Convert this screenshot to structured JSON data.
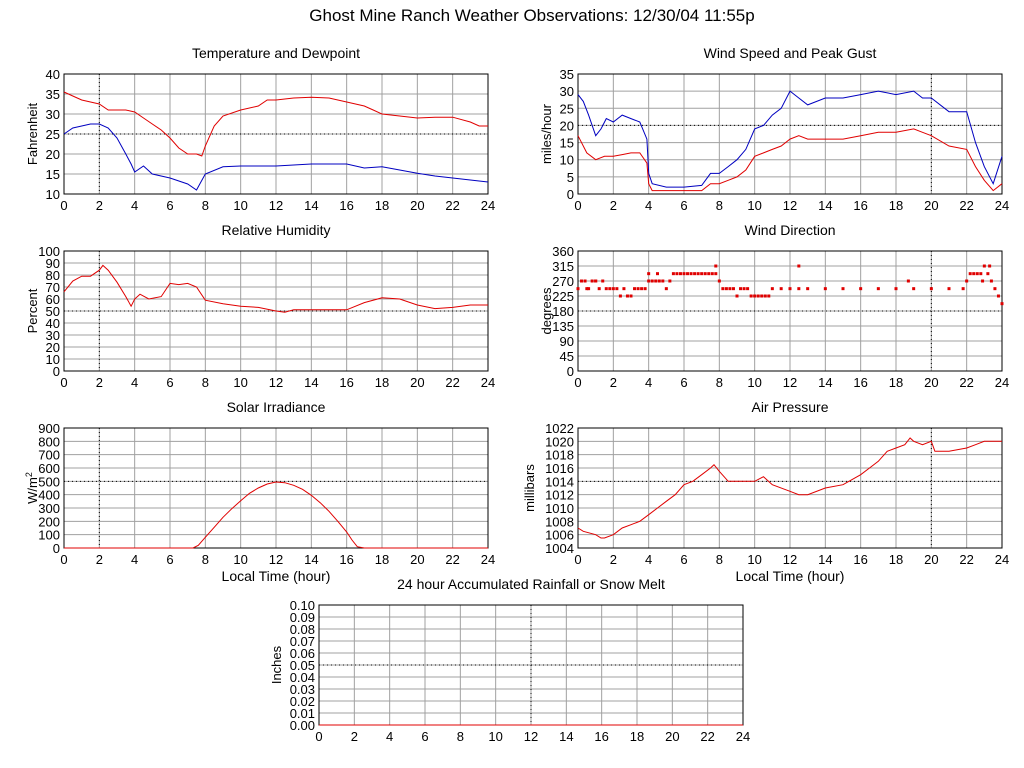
{
  "page": {
    "title": "Ghost Mine Ranch Weather Observations: 12/30/04 11:55p"
  },
  "colors": {
    "grid": "#a0a0a0",
    "dotted": "#000000",
    "red": "#e00000",
    "blue": "#0000c0"
  },
  "chart_data": [
    {
      "id": "temp",
      "type": "line",
      "title": "Temperature and Dewpoint",
      "ylabel": "Fahrenheit",
      "xlabel": "",
      "xlim": [
        0,
        24
      ],
      "ylim": [
        10,
        40
      ],
      "yticks": [
        10,
        15,
        20,
        25,
        30,
        35,
        40
      ],
      "xticks": [
        0,
        2,
        4,
        6,
        8,
        10,
        12,
        14,
        16,
        18,
        20,
        22,
        24
      ],
      "grid": true,
      "series": [
        {
          "color": "red",
          "x": [
            0,
            0.5,
            1,
            1.5,
            2,
            2.5,
            3,
            3.5,
            4,
            4.5,
            5,
            5.5,
            6,
            6.5,
            7,
            7.5,
            7.8,
            8,
            8.5,
            9,
            10,
            11,
            11.5,
            12,
            13,
            14,
            15,
            16,
            17,
            17.5,
            18,
            19,
            20,
            21,
            22,
            23,
            23.5,
            24
          ],
          "y": [
            35.5,
            34.5,
            33.5,
            33,
            32.5,
            31,
            31,
            31,
            30.5,
            29,
            27.5,
            26,
            24,
            21.5,
            20,
            20,
            19.5,
            22,
            27,
            29.5,
            31,
            32,
            33.5,
            33.5,
            34,
            34.2,
            34,
            33,
            32,
            31,
            30,
            29.5,
            29,
            29.2,
            29.2,
            28,
            27,
            27
          ]
        },
        {
          "color": "blue",
          "x": [
            0,
            0.5,
            1,
            1.5,
            2,
            2.5,
            3,
            3.5,
            3.8,
            4,
            4.5,
            5,
            6,
            7,
            7.5,
            8,
            9,
            10,
            12,
            14,
            16,
            17,
            18,
            19,
            20,
            21,
            22,
            23,
            24
          ],
          "y": [
            25,
            26.5,
            27,
            27.5,
            27.5,
            26.5,
            24,
            20,
            17.5,
            15.5,
            17,
            15,
            14,
            12.5,
            11,
            15,
            16.8,
            17,
            17,
            17.5,
            17.5,
            16.5,
            16.8,
            16,
            15.2,
            14.5,
            14,
            13.5,
            13
          ]
        }
      ]
    },
    {
      "id": "wind",
      "type": "line",
      "title": "Wind Speed and Peak Gust",
      "ylabel": "miles/hour",
      "xlabel": "",
      "xlim": [
        0,
        24
      ],
      "ylim": [
        0,
        35
      ],
      "yticks": [
        0,
        5,
        10,
        15,
        20,
        25,
        30,
        35
      ],
      "xticks": [
        0,
        2,
        4,
        6,
        8,
        10,
        12,
        14,
        16,
        18,
        20,
        22,
        24
      ],
      "grid": true,
      "series": [
        {
          "color": "blue",
          "x": [
            0,
            0.3,
            0.6,
            1,
            1.3,
            1.6,
            2,
            2.5,
            3,
            3.5,
            3.9,
            4,
            4.2,
            5,
            6,
            7,
            7.5,
            8,
            8.5,
            9,
            9.5,
            10,
            10.5,
            11,
            11.5,
            12,
            12.5,
            13,
            14,
            15,
            16,
            17,
            18,
            19,
            19.5,
            20,
            21,
            22,
            22.5,
            23,
            23.5,
            24
          ],
          "y": [
            29,
            27,
            23,
            17,
            19,
            22,
            21,
            23,
            22,
            21,
            16,
            6,
            3,
            2,
            2,
            2.5,
            6,
            6,
            8,
            10,
            13,
            19,
            20,
            23,
            25,
            30,
            28,
            26,
            28,
            28,
            29,
            30,
            29,
            30,
            28,
            28,
            24,
            24,
            15,
            8,
            3,
            11
          ]
        },
        {
          "color": "red",
          "x": [
            0,
            0.5,
            1,
            1.5,
            2,
            2.5,
            3,
            3.5,
            3.9,
            4,
            4.2,
            5,
            6,
            7,
            7.5,
            8,
            8.5,
            9,
            9.5,
            10,
            10.5,
            11,
            11.5,
            12,
            12.5,
            13,
            14,
            15,
            16,
            17,
            18,
            19,
            19.5,
            20,
            21,
            22,
            22.5,
            23,
            23.5,
            24
          ],
          "y": [
            17,
            12,
            10,
            11,
            11,
            11.5,
            12,
            12,
            9,
            3,
            1,
            1,
            1,
            1,
            3,
            3,
            4,
            5,
            7,
            11,
            12,
            13,
            14,
            16,
            17,
            16,
            16,
            16,
            17,
            18,
            18,
            19,
            18,
            17,
            14,
            13,
            8,
            4,
            1,
            3
          ]
        }
      ]
    },
    {
      "id": "humidity",
      "type": "line",
      "title": "Relative Humidity",
      "ylabel": "Percent",
      "xlabel": "",
      "xlim": [
        0,
        24
      ],
      "ylim": [
        0,
        100
      ],
      "yticks": [
        0,
        10,
        20,
        30,
        40,
        50,
        60,
        70,
        80,
        90,
        100
      ],
      "xticks": [
        0,
        2,
        4,
        6,
        8,
        10,
        12,
        14,
        16,
        18,
        20,
        22,
        24
      ],
      "grid": true,
      "series": [
        {
          "color": "red",
          "x": [
            0,
            0.5,
            1,
            1.5,
            2,
            2.2,
            2.5,
            3,
            3.5,
            3.8,
            4,
            4.3,
            4.8,
            5.5,
            6,
            6.5,
            7,
            7.5,
            8,
            9,
            10,
            11,
            12,
            12.5,
            13,
            14,
            15,
            16,
            17,
            18,
            19,
            20,
            21,
            22,
            23,
            24
          ],
          "y": [
            66,
            75,
            79,
            79,
            84,
            88,
            84,
            74,
            62,
            54,
            60,
            64,
            60,
            62,
            73,
            72,
            73,
            70,
            59,
            56,
            54,
            53,
            50,
            49,
            51,
            51,
            51,
            51,
            57,
            61,
            60,
            55,
            52,
            53,
            55,
            55
          ]
        }
      ]
    },
    {
      "id": "direction",
      "type": "scatter",
      "title": "Wind Direction",
      "ylabel": "degrees",
      "xlabel": "",
      "xlim": [
        0,
        24
      ],
      "ylim": [
        0,
        360
      ],
      "yticks": [
        0,
        45,
        90,
        135,
        180,
        225,
        270,
        315,
        360
      ],
      "xticks": [
        0,
        2,
        4,
        6,
        8,
        10,
        12,
        14,
        16,
        18,
        20,
        22,
        24
      ],
      "grid": true,
      "series": [
        {
          "color": "red",
          "x": [
            0,
            0.2,
            0.4,
            0.6,
            0.8,
            1,
            1.2,
            1.4,
            1.6,
            1.8,
            2,
            2.2,
            2.4,
            2.6,
            2.8,
            3,
            3.2,
            3.4,
            3.6,
            3.8,
            4,
            4.2,
            4.4,
            4.6,
            4.8,
            5,
            5.2,
            5.4,
            5.6,
            5.8,
            6,
            6.2,
            6.4,
            6.6,
            6.8,
            7,
            7.2,
            7.4,
            7.6,
            7.8,
            8,
            8.2,
            8.4,
            8.6,
            8.8,
            9,
            9.2,
            9.4,
            9.6,
            9.8,
            10,
            10.2,
            10.4,
            10.6,
            10.8,
            11,
            11.5,
            12,
            12.5,
            13,
            14,
            15,
            16,
            17,
            18,
            18.7,
            19,
            20,
            21,
            21.8,
            22,
            22.2,
            22.4,
            22.6,
            22.8,
            23,
            23.2,
            23.4,
            23.6,
            23.8,
            24,
            0.5,
            1,
            4,
            4.5,
            7.8,
            12.5,
            22.9,
            23.3
          ],
          "y": [
            247,
            270,
            270,
            247,
            270,
            270,
            247,
            270,
            247,
            247,
            247,
            247,
            225,
            247,
            225,
            225,
            247,
            247,
            247,
            247,
            292,
            270,
            270,
            270,
            270,
            247,
            270,
            292,
            292,
            292,
            292,
            292,
            292,
            292,
            292,
            292,
            292,
            292,
            292,
            315,
            270,
            247,
            247,
            247,
            247,
            225,
            247,
            247,
            247,
            225,
            225,
            225,
            225,
            225,
            225,
            247,
            247,
            247,
            247,
            247,
            247,
            247,
            247,
            247,
            247,
            270,
            247,
            247,
            247,
            247,
            270,
            292,
            292,
            292,
            292,
            315,
            292,
            270,
            247,
            225,
            202,
            247,
            270,
            270,
            292,
            292,
            315,
            270,
            315
          ]
        }
      ]
    },
    {
      "id": "solar",
      "type": "line",
      "title": "Solar Irradiance",
      "ylabel": "W/m",
      "ylabel_sup": "2",
      "xlabel": "Local Time (hour)",
      "xlim": [
        0,
        24
      ],
      "ylim": [
        0,
        900
      ],
      "yticks": [
        0,
        100,
        200,
        300,
        400,
        500,
        600,
        700,
        800,
        900
      ],
      "xticks": [
        0,
        2,
        4,
        6,
        8,
        10,
        12,
        14,
        16,
        18,
        20,
        22,
        24
      ],
      "grid": true,
      "series": [
        {
          "color": "red",
          "x": [
            0,
            7.3,
            7.6,
            8,
            8.5,
            9,
            9.5,
            10,
            10.5,
            11,
            11.5,
            12,
            12.5,
            13,
            13.5,
            14,
            14.5,
            15,
            15.5,
            16,
            16.3,
            16.6,
            17,
            24
          ],
          "y": [
            0,
            0,
            20,
            80,
            155,
            230,
            295,
            355,
            410,
            450,
            480,
            495,
            490,
            470,
            440,
            395,
            340,
            275,
            200,
            120,
            60,
            10,
            0,
            0
          ]
        }
      ]
    },
    {
      "id": "pressure",
      "type": "line",
      "title": "Air Pressure",
      "ylabel": "millibars",
      "xlabel": "Local Time (hour)",
      "xlim": [
        0,
        24
      ],
      "ylim": [
        1004,
        1022
      ],
      "yticks": [
        1004,
        1006,
        1008,
        1010,
        1012,
        1014,
        1016,
        1018,
        1020,
        1022
      ],
      "xticks": [
        0,
        2,
        4,
        6,
        8,
        10,
        12,
        14,
        16,
        18,
        20,
        22,
        24
      ],
      "grid": true,
      "series": [
        {
          "color": "red",
          "x": [
            0,
            0.3,
            1,
            1.3,
            1.5,
            2,
            2.5,
            3,
            3.5,
            4,
            4.5,
            5,
            5.5,
            6,
            6.5,
            7,
            7.5,
            7.7,
            8,
            8.5,
            9,
            10,
            10.5,
            11,
            12,
            12.5,
            13,
            14,
            15,
            16,
            16.5,
            17,
            17.5,
            18,
            18.5,
            18.8,
            19,
            19.5,
            20,
            20.2,
            21,
            22,
            22.5,
            23,
            24
          ],
          "y": [
            1007,
            1006.5,
            1006,
            1005.5,
            1005.5,
            1006,
            1007,
            1007.5,
            1008,
            1009,
            1010,
            1011,
            1012,
            1013.5,
            1014,
            1015,
            1016,
            1016.5,
            1015.5,
            1014,
            1014,
            1014,
            1014.7,
            1013.5,
            1012.5,
            1012,
            1012,
            1013,
            1013.5,
            1015,
            1016,
            1017,
            1018.5,
            1019,
            1019.5,
            1020.5,
            1020,
            1019.5,
            1020,
            1018.5,
            1018.5,
            1019,
            1019.5,
            1020,
            1020
          ]
        }
      ]
    },
    {
      "id": "rain",
      "type": "line",
      "title": "24 hour Accumulated Rainfall or Snow Melt",
      "ylabel": "Inches",
      "xlabel": "",
      "xlim": [
        0,
        24
      ],
      "ylim": [
        0,
        0.1
      ],
      "yticks": [
        0,
        0.01,
        0.02,
        0.03,
        0.04,
        0.05,
        0.06,
        0.07,
        0.08,
        0.09,
        0.1
      ],
      "ytick_labels": [
        "0.00",
        "0.01",
        "0.02",
        "0.03",
        "0.04",
        "0.05",
        "0.06",
        "0.07",
        "0.08",
        "0.09",
        "0.10"
      ],
      "xticks": [
        0,
        2,
        4,
        6,
        8,
        10,
        12,
        14,
        16,
        18,
        20,
        22,
        24
      ],
      "grid": true,
      "series": [
        {
          "color": "red",
          "x": [
            0,
            24
          ],
          "y": [
            0,
            0
          ]
        }
      ]
    }
  ]
}
